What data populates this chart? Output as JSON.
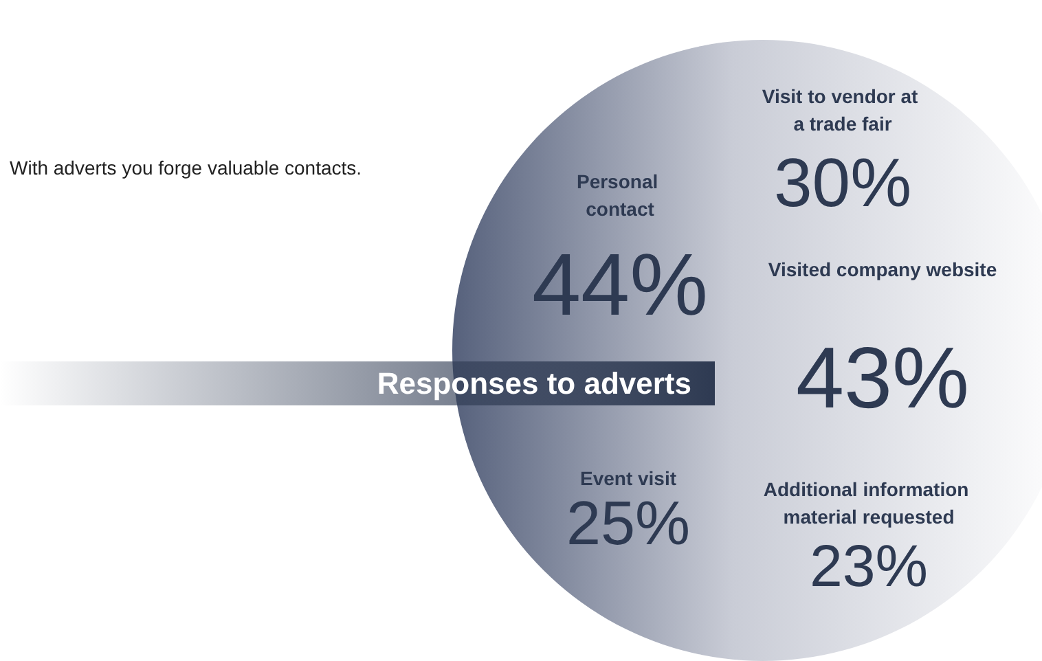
{
  "chart_data": {
    "type": "other",
    "title": "Responses to adverts",
    "categories": [
      "Visit to vendor at a trade fair",
      "Personal contact",
      "Visited company website",
      "Event visit",
      "Additional information material requested"
    ],
    "values": [
      30,
      44,
      43,
      25,
      23
    ],
    "value_labels": [
      "30%",
      "44%",
      "43%",
      "25%",
      "23%"
    ],
    "annotations": [
      "With adverts you forge valuable contacts."
    ]
  }
}
